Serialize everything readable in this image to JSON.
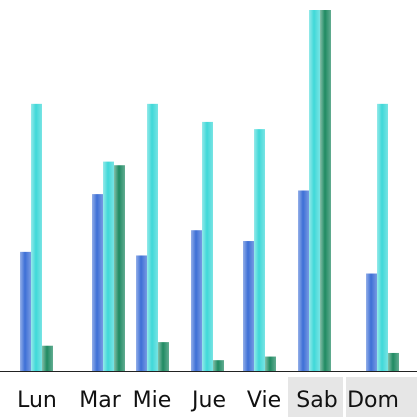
{
  "chart_data": {
    "type": "bar",
    "categories": [
      "Lun",
      "Mar",
      "Mie",
      "Jue",
      "Vie",
      "Sab",
      "Dom"
    ],
    "highlighted_categories": [
      "Sab",
      "Dom"
    ],
    "series": [
      {
        "values": [
          33,
          49,
          32,
          39,
          36,
          50,
          27
        ],
        "color": "#3d6fd6"
      },
      {
        "values": [
          74,
          58,
          74,
          69,
          67,
          100,
          74
        ],
        "color": "#3fd8d8"
      },
      {
        "values": [
          7,
          57,
          8,
          3,
          4,
          100,
          5
        ],
        "color": "#1f8a62"
      }
    ],
    "ylim": [
      0,
      100
    ],
    "grid": false,
    "legend": "none",
    "colors": {
      "highlight_band": "#e6e6e6",
      "baseline": "#222222",
      "text": "#111111"
    }
  }
}
